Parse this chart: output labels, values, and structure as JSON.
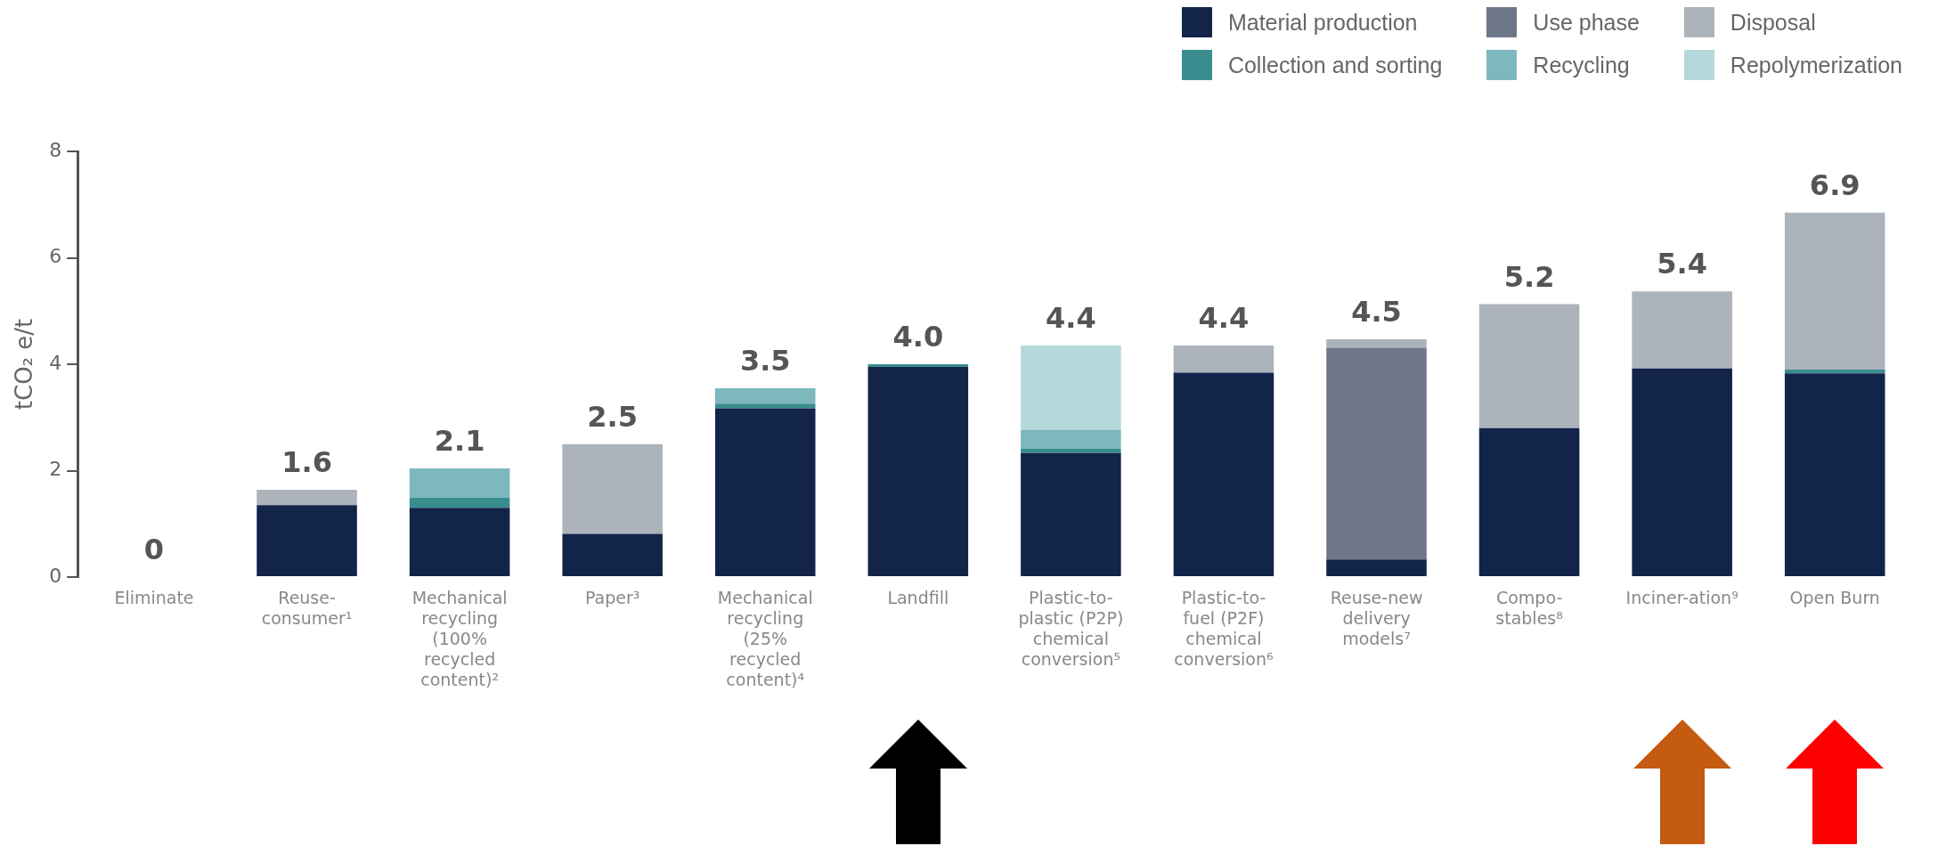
{
  "chart_data": {
    "type": "bar",
    "stacked": true,
    "ylabel": "tCO₂ e/t",
    "categories": [
      "Eliminate",
      "Reuse-consumer¹",
      "Mechanical recycling (100% recycled content)²",
      "Paper³",
      "Mechanical recycling (25% recycled content)⁴",
      "Landfill",
      "Plastic-to-plastic (P2P) chemical conversion⁵",
      "Plastic-to-fuel (P2F) chemical conversion⁶",
      "Reuse-new delivery models⁷",
      "Compo-stables⁸",
      "Inciner-ation⁹",
      "Open Burn"
    ],
    "series": [
      {
        "name": "Material production",
        "color": "#13244a",
        "values": [
          0,
          1.35,
          1.3,
          0.81,
          3.17,
          3.95,
          2.33,
          3.84,
          0.33,
          2.8,
          3.92,
          3.83
        ]
      },
      {
        "name": "Collection and sorting",
        "color": "#3a8d8f",
        "values": [
          0,
          0,
          0.19,
          0,
          0.09,
          0.05,
          0.08,
          0,
          0,
          0,
          0,
          0.07
        ]
      },
      {
        "name": "Recycling",
        "color": "#7db8bd",
        "values": [
          0,
          0,
          0.55,
          0,
          0.29,
          0,
          0.36,
          0,
          0,
          0,
          0,
          0
        ]
      },
      {
        "name": "Repolymerization",
        "color": "#b5d9da",
        "values": [
          0,
          0,
          0,
          0,
          0,
          0,
          1.58,
          0,
          0,
          0,
          0,
          0
        ]
      },
      {
        "name": "Use phase",
        "color": "#6e7789",
        "values": [
          0,
          0,
          0,
          0,
          0,
          0,
          0,
          0,
          3.98,
          0,
          0,
          0
        ]
      },
      {
        "name": "Disposal",
        "color": "#adb3bb",
        "values": [
          0,
          0.29,
          0,
          1.69,
          0,
          0,
          0,
          0.51,
          0.16,
          2.33,
          1.45,
          2.95
        ]
      }
    ],
    "totals": [
      "0",
      "1.6",
      "2.1",
      "2.5",
      "3.5",
      "4.0",
      "4.4",
      "4.4",
      "4.5",
      "5.2",
      "5.4",
      "6.9"
    ],
    "ylim": [
      0,
      8
    ],
    "yticks": [
      0,
      2,
      4,
      6,
      8
    ],
    "grid": false,
    "legend": "top right"
  }
}
